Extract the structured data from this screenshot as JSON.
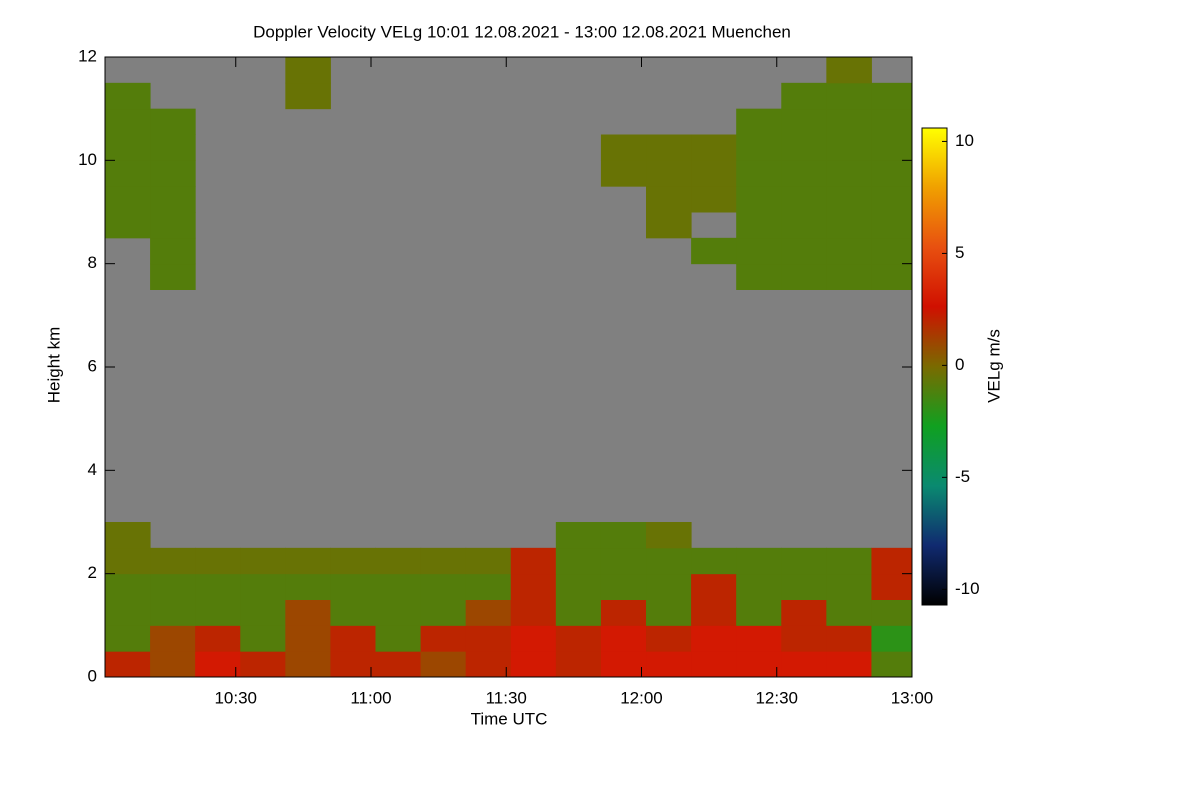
{
  "chart_data": {
    "type": "heatmap",
    "title": "Doppler Velocity VELg   10:01 12.08.2021 - 13:00 12.08.2021 Muenchen",
    "x_label": "Time UTC",
    "y_label": "Height km",
    "colorbar_label": "VELg m/s",
    "xlim": [
      "10:01",
      "13:00"
    ],
    "xticks": [
      "10:30",
      "11:00",
      "11:30",
      "12:00",
      "12:30",
      "13:00"
    ],
    "ylim": [
      0,
      12
    ],
    "yticks": [
      0,
      2,
      4,
      6,
      8,
      10,
      12
    ],
    "zlim": [
      -10.7,
      10.6
    ],
    "zticks": [
      -10,
      -5,
      0,
      5,
      10
    ],
    "colors": [
      "#000000",
      "#102a70",
      "#0a8a70",
      "#10a020",
      "#7a6a00",
      "#d01000",
      "#e85010",
      "#f0a000",
      "#ffff00"
    ],
    "background": "#808080",
    "x": [
      "10:01",
      "10:11",
      "10:21",
      "10:31",
      "10:41",
      "10:51",
      "11:01",
      "11:11",
      "11:21",
      "11:31",
      "11:41",
      "11:51",
      "12:01",
      "12:11",
      "12:21",
      "12:31",
      "12:41",
      "12:51"
    ],
    "y": [
      0,
      0.5,
      1,
      1.5,
      2,
      2.5,
      3,
      3.5,
      4,
      4.5,
      5,
      5.5,
      6,
      6.5,
      7,
      7.5,
      8,
      8.5,
      9,
      9.5,
      10,
      10.5,
      11,
      11.5
    ],
    "z": [
      [
        2,
        1,
        3,
        2,
        1,
        2,
        2,
        1,
        2,
        3,
        2,
        3,
        3,
        3,
        3,
        3,
        3,
        -1
      ],
      [
        -1,
        1,
        2,
        -1,
        1,
        2,
        -1,
        2,
        2,
        3,
        2,
        3,
        2,
        3,
        3,
        2,
        2,
        -2
      ],
      [
        -1,
        -1,
        -1,
        -1,
        1,
        -1,
        -1,
        -1,
        1,
        2,
        -1,
        2,
        -1,
        2,
        -1,
        2,
        -1,
        -1
      ],
      [
        -1,
        -1,
        -1,
        -1,
        -1,
        -1,
        -1,
        -1,
        -1,
        2,
        -1,
        -1,
        -1,
        2,
        -1,
        -1,
        -1,
        2
      ],
      [
        -0.5,
        -0.5,
        -0.5,
        -0.5,
        -0.5,
        -0.5,
        -0.5,
        -0.5,
        -0.5,
        2,
        -1,
        -1,
        -1,
        -1,
        -1,
        -1,
        -1,
        2
      ],
      [
        -0.5,
        null,
        null,
        null,
        null,
        null,
        null,
        null,
        null,
        null,
        -1,
        -1,
        -0.5,
        null,
        null,
        null,
        null,
        null
      ],
      [
        null,
        null,
        null,
        null,
        null,
        null,
        null,
        null,
        null,
        null,
        null,
        null,
        null,
        null,
        null,
        null,
        null,
        null
      ],
      [
        null,
        null,
        null,
        null,
        null,
        null,
        null,
        null,
        null,
        null,
        null,
        null,
        null,
        null,
        null,
        null,
        null,
        null
      ],
      [
        null,
        null,
        null,
        null,
        null,
        null,
        null,
        null,
        null,
        null,
        null,
        null,
        null,
        null,
        null,
        null,
        null,
        null
      ],
      [
        null,
        null,
        null,
        null,
        null,
        null,
        null,
        null,
        null,
        null,
        null,
        null,
        null,
        null,
        null,
        null,
        null,
        null
      ],
      [
        null,
        null,
        null,
        null,
        null,
        null,
        null,
        null,
        null,
        null,
        null,
        null,
        null,
        null,
        null,
        null,
        null,
        null
      ],
      [
        null,
        null,
        null,
        null,
        null,
        null,
        null,
        null,
        null,
        null,
        null,
        null,
        null,
        null,
        null,
        null,
        null,
        null
      ],
      [
        null,
        null,
        null,
        null,
        null,
        null,
        null,
        null,
        null,
        null,
        null,
        null,
        null,
        null,
        null,
        null,
        null,
        null
      ],
      [
        null,
        null,
        null,
        null,
        null,
        null,
        null,
        null,
        null,
        null,
        null,
        null,
        null,
        null,
        null,
        null,
        null,
        null
      ],
      [
        null,
        null,
        null,
        null,
        null,
        null,
        null,
        null,
        null,
        null,
        null,
        null,
        null,
        null,
        null,
        null,
        null,
        null
      ],
      [
        null,
        -1,
        null,
        null,
        null,
        null,
        null,
        null,
        null,
        null,
        null,
        null,
        null,
        null,
        -1,
        -1,
        -1,
        -1
      ],
      [
        null,
        -1,
        null,
        null,
        null,
        null,
        null,
        null,
        null,
        null,
        null,
        null,
        null,
        -1,
        -1,
        -1,
        -1,
        -1
      ],
      [
        -1,
        -1,
        null,
        null,
        null,
        null,
        null,
        null,
        null,
        null,
        null,
        null,
        -0.5,
        null,
        -1,
        -1,
        -1,
        -1
      ],
      [
        -1,
        -1,
        null,
        null,
        null,
        null,
        null,
        null,
        null,
        null,
        null,
        null,
        -0.5,
        -0.5,
        -1,
        -1,
        -1,
        -1
      ],
      [
        -1,
        -1,
        null,
        null,
        null,
        null,
        null,
        null,
        null,
        null,
        null,
        -0.5,
        -0.5,
        -0.5,
        -1,
        -1,
        -1,
        -1
      ],
      [
        -1,
        -1,
        null,
        null,
        null,
        null,
        null,
        null,
        null,
        null,
        null,
        -0.5,
        -0.5,
        -0.5,
        -1,
        -1,
        -1,
        -1
      ],
      [
        -1,
        -1,
        null,
        null,
        null,
        null,
        null,
        null,
        null,
        null,
        null,
        null,
        null,
        null,
        -1,
        -1,
        -1,
        -1
      ],
      [
        -1,
        null,
        null,
        null,
        -0.5,
        null,
        null,
        null,
        null,
        null,
        null,
        null,
        null,
        null,
        null,
        -1,
        -1,
        -1
      ],
      [
        null,
        null,
        null,
        null,
        -0.5,
        null,
        null,
        null,
        null,
        null,
        null,
        null,
        null,
        null,
        null,
        null,
        -0.5,
        null
      ]
    ]
  }
}
